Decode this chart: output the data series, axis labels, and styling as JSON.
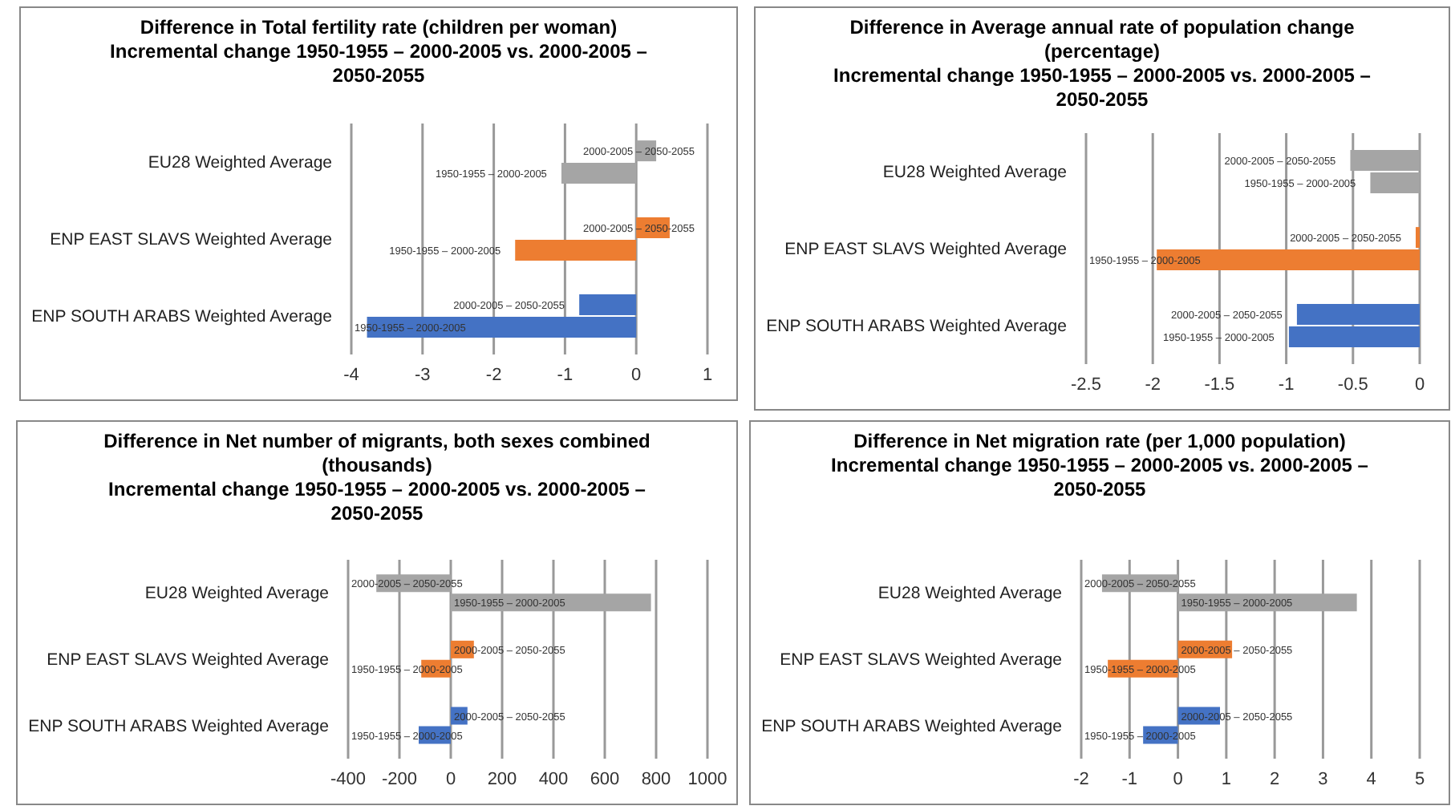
{
  "chart_data": [
    {
      "type": "bar",
      "orientation": "horizontal",
      "title": "Difference in Total fertility rate (children per woman)",
      "subtitle": "Incremental change 1950-1955 – 2000-2005 vs. 2000-2005 – 2050-2055",
      "categories": [
        "EU28 Weighted Average",
        "ENP EAST SLAVS Weighted Average",
        "ENP SOUTH ARABS Weighted Average"
      ],
      "series": [
        {
          "name": "2000-2005 – 2050-2055",
          "colors": [
            "#a5a5a5",
            "#ed7d31",
            "#4472c4"
          ],
          "values": [
            0.28,
            0.47,
            -0.8
          ]
        },
        {
          "name": "1950-1955 – 2000-2005",
          "colors": [
            "#a5a5a5",
            "#ed7d31",
            "#4472c4"
          ],
          "values": [
            -1.05,
            -1.7,
            -3.78
          ]
        }
      ],
      "xlim": [
        -4,
        1
      ],
      "xticks": [
        -4,
        -3,
        -2,
        -1,
        0,
        1
      ],
      "grid": "x"
    },
    {
      "type": "bar",
      "orientation": "horizontal",
      "title": "Difference in Average annual rate of population change (percentage)",
      "subtitle": "Incremental change 1950-1955 – 2000-2005 vs. 2000-2005 – 2050-2055",
      "categories": [
        "EU28 Weighted Average",
        "ENP EAST SLAVS Weighted Average",
        "ENP SOUTH ARABS Weighted Average"
      ],
      "series": [
        {
          "name": "2000-2005 – 2050-2055",
          "colors": [
            "#a5a5a5",
            "#ed7d31",
            "#4472c4"
          ],
          "values": [
            -0.52,
            -0.03,
            -0.92
          ]
        },
        {
          "name": "1950-1955 – 2000-2005",
          "colors": [
            "#a5a5a5",
            "#ed7d31",
            "#4472c4"
          ],
          "values": [
            -0.37,
            -1.97,
            -0.98
          ]
        }
      ],
      "xlim": [
        -2.5,
        0
      ],
      "xticks": [
        -2.5,
        -2,
        -1.5,
        -1,
        -0.5,
        0
      ],
      "grid": "x"
    },
    {
      "type": "bar",
      "orientation": "horizontal",
      "title": "Difference in Net number of migrants, both sexes combined (thousands)",
      "subtitle": "Incremental change 1950-1955 – 2000-2005 vs. 2000-2005 – 2050-2055",
      "categories": [
        "EU28 Weighted Average",
        "ENP EAST SLAVS Weighted Average",
        "ENP SOUTH ARABS Weighted Average"
      ],
      "series": [
        {
          "name": "2000-2005 – 2050-2055",
          "colors": [
            "#a5a5a5",
            "#ed7d31",
            "#4472c4"
          ],
          "values": [
            -290,
            90,
            65
          ]
        },
        {
          "name": "1950-1955 – 2000-2005",
          "colors": [
            "#a5a5a5",
            "#ed7d31",
            "#4472c4"
          ],
          "values": [
            780,
            -115,
            -125
          ]
        }
      ],
      "xlim": [
        -400,
        1000
      ],
      "xticks": [
        -400,
        -200,
        0,
        200,
        400,
        600,
        800,
        1000
      ],
      "grid": "x"
    },
    {
      "type": "bar",
      "orientation": "horizontal",
      "title": "Difference in Net migration rate (per 1,000 population)",
      "subtitle": "Incremental change 1950-1955 – 2000-2005 vs. 2000-2005 – 2050-2055",
      "categories": [
        "EU28 Weighted Average",
        "ENP EAST SLAVS Weighted Average",
        "ENP SOUTH ARABS Weighted Average"
      ],
      "series": [
        {
          "name": "2000-2005 – 2050-2055",
          "colors": [
            "#a5a5a5",
            "#ed7d31",
            "#4472c4"
          ],
          "values": [
            -1.57,
            1.12,
            0.87
          ]
        },
        {
          "name": "1950-1955 – 2000-2005",
          "colors": [
            "#a5a5a5",
            "#ed7d31",
            "#4472c4"
          ],
          "values": [
            3.7,
            -1.45,
            -0.72
          ]
        }
      ],
      "xlim": [
        -2,
        5
      ],
      "xticks": [
        -2,
        -1,
        0,
        1,
        2,
        3,
        4,
        5
      ],
      "grid": "x"
    }
  ]
}
